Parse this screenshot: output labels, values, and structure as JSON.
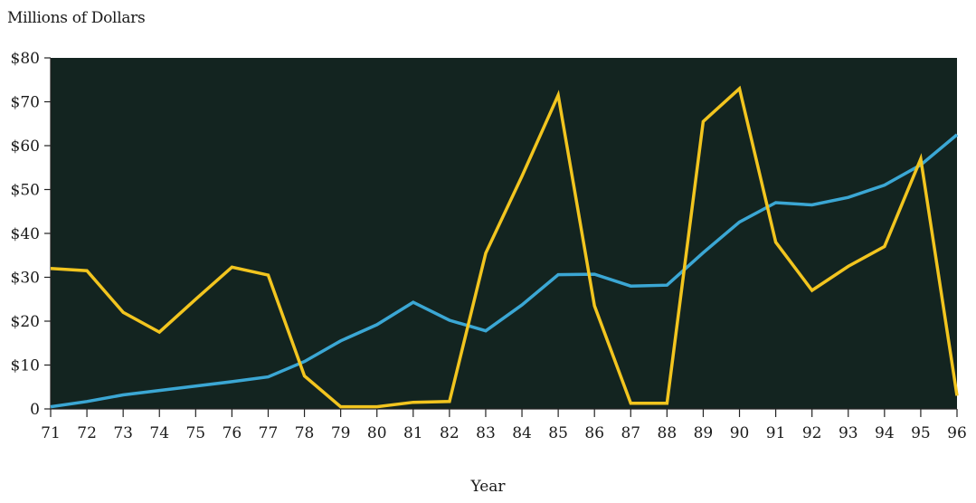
{
  "chart_data": {
    "type": "line",
    "ylabel": "Millions of Dollars",
    "xlabel": "Year",
    "x": [
      71,
      72,
      73,
      74,
      75,
      76,
      77,
      78,
      79,
      80,
      81,
      82,
      83,
      84,
      85,
      86,
      87,
      88,
      89,
      90,
      91,
      92,
      93,
      94,
      95,
      96
    ],
    "x_tick_labels": [
      "71",
      "72",
      "73",
      "74",
      "75",
      "76",
      "77",
      "78",
      "79",
      "80",
      "81",
      "82",
      "83",
      "84",
      "85",
      "86",
      "87",
      "88",
      "89",
      "90",
      "91",
      "92",
      "93",
      "94",
      "95",
      "96"
    ],
    "y_ticks": [
      0,
      10,
      20,
      30,
      40,
      50,
      60,
      70,
      80
    ],
    "y_tick_labels": [
      "0",
      "$10",
      "$20",
      "$30",
      "$40",
      "$50",
      "$60",
      "$70",
      "$80"
    ],
    "ylim": [
      0,
      80
    ],
    "xlim": [
      71,
      96
    ],
    "grid": false,
    "plot_background": "#132420",
    "series": [
      {
        "color": "#3ba7d4",
        "values": [
          0.5,
          1.7,
          3.2,
          4.2,
          5.2,
          6.2,
          7.3,
          10.8,
          15.5,
          19.2,
          24.3,
          20.2,
          17.8,
          23.7,
          30.6,
          30.7,
          28,
          28.2,
          35.6,
          42.6,
          47,
          46.5,
          48.2,
          51,
          55.6,
          62.5
        ]
      },
      {
        "color": "#f2c51f",
        "values": [
          32,
          31.5,
          22,
          17.5,
          25,
          32.3,
          30.5,
          7.5,
          0.5,
          0.5,
          1.5,
          1.7,
          35.5,
          53,
          71.5,
          23.5,
          1.3,
          1.3,
          65.5,
          73,
          38,
          27,
          32.5,
          37,
          57,
          3
        ]
      }
    ]
  }
}
